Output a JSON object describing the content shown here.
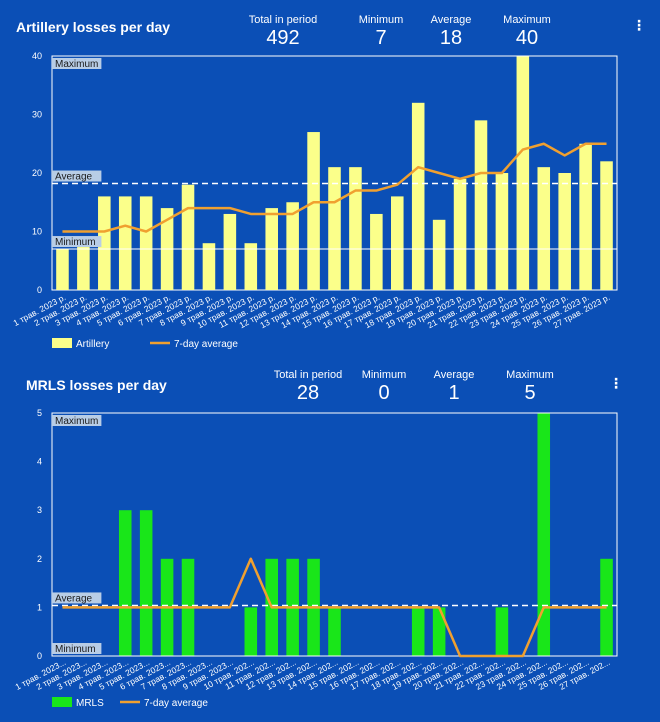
{
  "colors": {
    "background": "#0b4fb6",
    "artillery_bar": "#fbff8a",
    "mrls_bar": "#19e619",
    "avg_line": "#f0a030",
    "ref_label_bg": "#b8cde6"
  },
  "chart_data": [
    {
      "id": "artillery",
      "type": "bar",
      "title": "Artillery losses per day",
      "stats": [
        {
          "label": "Total in period",
          "value": "492"
        },
        {
          "label": "Minimum",
          "value": "7"
        },
        {
          "label": "Average",
          "value": "18"
        },
        {
          "label": "Maximum",
          "value": "40"
        }
      ],
      "categories": [
        "1 трав. 2023 р.",
        "2 трав. 2023 р.",
        "3 трав. 2023 р.",
        "4 трав. 2023 р.",
        "5 трав. 2023 р.",
        "6 трав. 2023 р.",
        "7 трав. 2023 р.",
        "8 трав. 2023 р.",
        "9 трав. 2023 р.",
        "10 трав. 2023 р.",
        "11 трав. 2023 р.",
        "12 трав. 2023 р.",
        "13 трав. 2023 р.",
        "14 трав. 2023 р.",
        "15 трав. 2023 р.",
        "16 трав. 2023 р.",
        "17 трав. 2023 р.",
        "18 трав. 2023 р.",
        "19 трав. 2023 р.",
        "20 трав. 2023 р.",
        "21 трав. 2023 р.",
        "22 трав. 2023 р.",
        "23 трав. 2023 р.",
        "24 трав. 2023 р.",
        "25 трав. 2023 р.",
        "26 трав. 2023 р.",
        "27 трав. 2023 р."
      ],
      "series": [
        {
          "name": "Artillery",
          "kind": "bar",
          "values": [
            7,
            9,
            16,
            16,
            16,
            14,
            18,
            8,
            13,
            8,
            14,
            15,
            27,
            21,
            21,
            13,
            16,
            32,
            12,
            19,
            29,
            20,
            40,
            21,
            20,
            25,
            22
          ]
        },
        {
          "name": "7-day average",
          "kind": "line",
          "values": [
            10,
            10,
            10,
            11,
            10,
            12,
            14,
            14,
            14,
            13,
            13,
            13,
            15,
            15,
            17,
            17,
            18,
            21,
            20,
            19,
            20,
            20,
            24,
            25,
            23,
            25,
            25
          ]
        }
      ],
      "ylim": [
        0,
        40
      ],
      "yticks": [
        0,
        10,
        20,
        30,
        40
      ],
      "reference_lines": [
        {
          "label": "Maximum",
          "value": 40,
          "style": "solid"
        },
        {
          "label": "Average",
          "value": 18.2,
          "style": "dashed"
        },
        {
          "label": "Minimum",
          "value": 7,
          "style": "solid"
        }
      ]
    },
    {
      "id": "mrls",
      "type": "bar",
      "title": "MRLS losses per day",
      "stats": [
        {
          "label": "Total in period",
          "value": "28"
        },
        {
          "label": "Minimum",
          "value": "0"
        },
        {
          "label": "Average",
          "value": "1"
        },
        {
          "label": "Maximum",
          "value": "5"
        }
      ],
      "categories": [
        "1 трав. 2023...",
        "2 трав. 2023...",
        "3 трав. 2023...",
        "4 трав. 2023...",
        "5 трав. 2023...",
        "6 трав. 2023...",
        "7 трав. 2023...",
        "8 трав. 2023...",
        "9 трав. 2023...",
        "10 трав. 202...",
        "11 трав. 202...",
        "12 трав. 202...",
        "13 трав. 202...",
        "14 трав. 202...",
        "15 трав. 202...",
        "16 трав. 202...",
        "17 трав. 202...",
        "18 трав. 202...",
        "19 трав. 202...",
        "20 трав. 202...",
        "21 трав. 202...",
        "22 трав. 202...",
        "23 трав. 202...",
        "24 трав. 202...",
        "25 трав. 202...",
        "26 трав. 202...",
        "27 трав. 202..."
      ],
      "series": [
        {
          "name": "MRLS",
          "kind": "bar",
          "values": [
            0,
            0,
            0,
            3,
            3,
            2,
            2,
            0,
            0,
            1,
            2,
            2,
            2,
            1,
            0,
            0,
            0,
            1,
            1,
            0,
            0,
            1,
            0,
            5,
            0,
            0,
            2
          ]
        },
        {
          "name": "7-day average",
          "kind": "line",
          "values": [
            1,
            1,
            1,
            1,
            1,
            1,
            1,
            1,
            1,
            2,
            1,
            1,
            1,
            1,
            1,
            1,
            1,
            1,
            1,
            0,
            0,
            0,
            0,
            1,
            1,
            1,
            1
          ]
        }
      ],
      "ylim": [
        0,
        5
      ],
      "yticks": [
        0,
        1,
        2,
        3,
        4,
        5
      ],
      "reference_lines": [
        {
          "label": "Maximum",
          "value": 5,
          "style": "solid"
        },
        {
          "label": "Average",
          "value": 1.04,
          "style": "dashed"
        },
        {
          "label": "Minimum",
          "value": 0,
          "style": "solid"
        }
      ]
    }
  ]
}
